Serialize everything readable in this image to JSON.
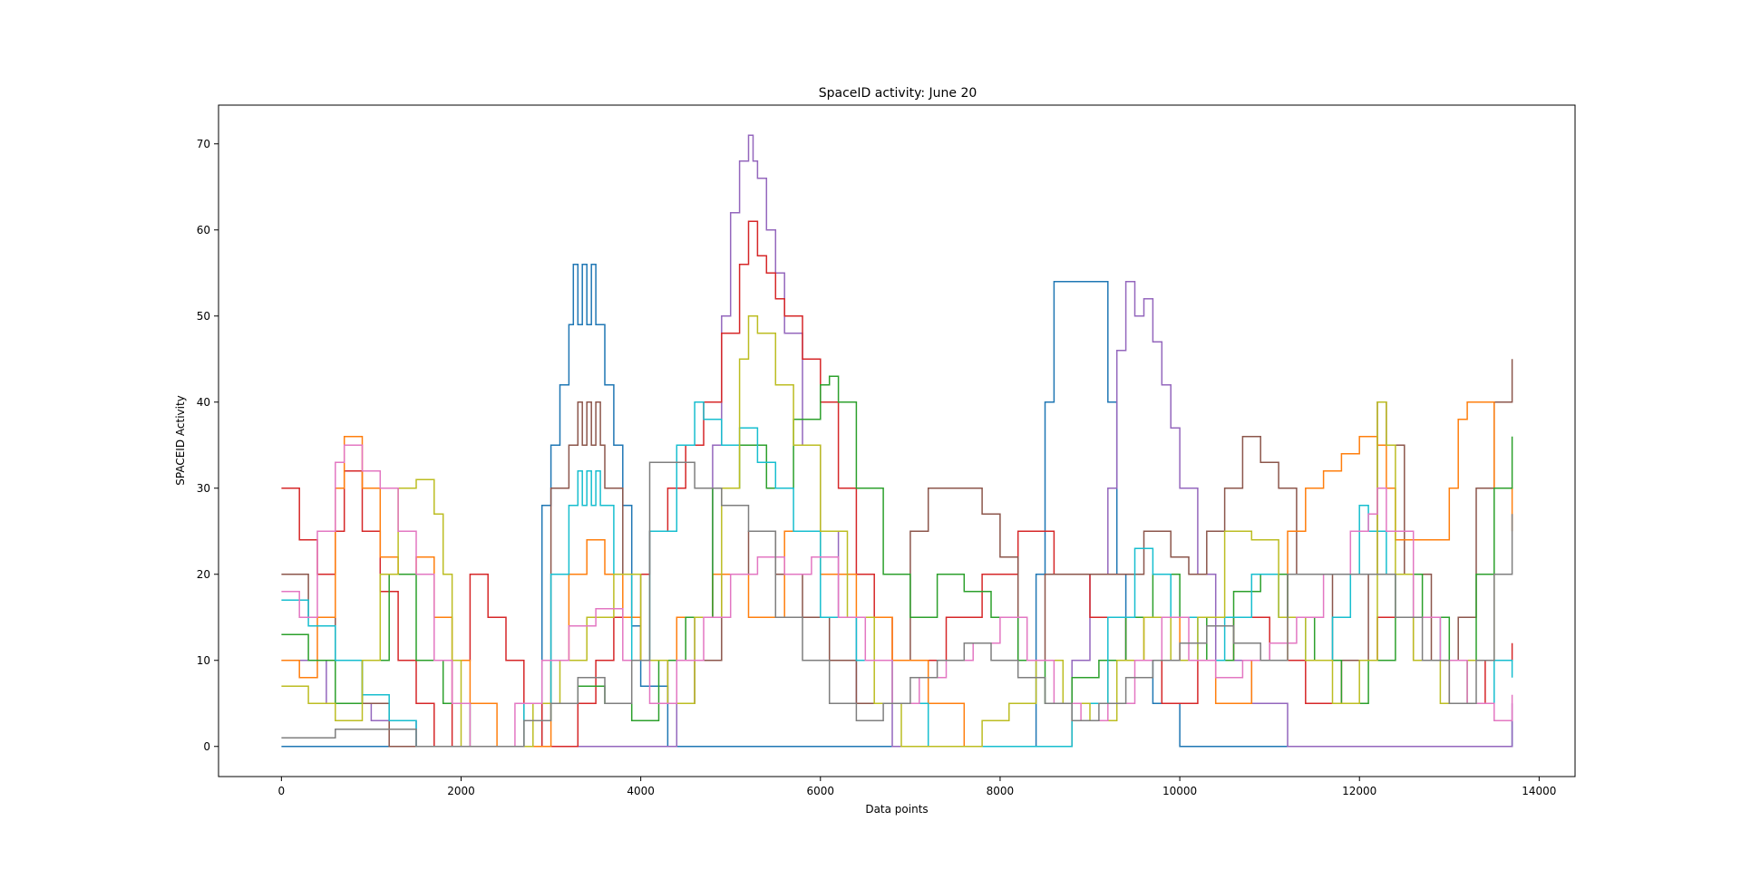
{
  "chart_data": {
    "type": "line",
    "title": "SpaceID activity: June 20",
    "xlabel": "Data points",
    "ylabel": "SPACEID Activity",
    "xlim": [
      -700,
      14400
    ],
    "ylim": [
      -3.5,
      74.5
    ],
    "xticks": [
      0,
      2000,
      4000,
      6000,
      8000,
      10000,
      12000,
      14000
    ],
    "yticks": [
      0,
      10,
      20,
      30,
      40,
      50,
      60,
      70
    ],
    "xtick_labels": [
      "0",
      "2000",
      "4000",
      "6000",
      "8000",
      "10000",
      "12000",
      "14000"
    ],
    "ytick_labels": [
      "0",
      "10",
      "20",
      "30",
      "40",
      "50",
      "60",
      "70"
    ],
    "grid": false,
    "legend": "none",
    "series": [
      {
        "color": "#1f77b4",
        "x": [
          0,
          300,
          600,
          900,
          1200,
          1500,
          1800,
          2100,
          2400,
          2700,
          2900,
          3000,
          3100,
          3200,
          3250,
          3300,
          3350,
          3400,
          3450,
          3500,
          3550,
          3600,
          3700,
          3800,
          3900,
          4000,
          4300,
          4600,
          5000,
          5400,
          5800,
          6200,
          6600,
          7000,
          7400,
          7800,
          8200,
          8400,
          8500,
          8600,
          8800,
          9000,
          9100,
          9200,
          9300,
          9400,
          9700,
          10000,
          10400,
          10800,
          11200,
          11600,
          12000,
          12400,
          12800,
          13200,
          13700
        ],
        "y": [
          0,
          0,
          0,
          0,
          0,
          0,
          0,
          0,
          0,
          0,
          28,
          35,
          42,
          49,
          56,
          49,
          56,
          49,
          56,
          49,
          49,
          42,
          35,
          28,
          14,
          7,
          0,
          0,
          0,
          0,
          0,
          0,
          0,
          0,
          0,
          0,
          0,
          20,
          40,
          54,
          54,
          54,
          54,
          40,
          20,
          10,
          5,
          0,
          0,
          0,
          0,
          0,
          0,
          0,
          0,
          0,
          3
        ]
      },
      {
        "color": "#9467bd",
        "x": [
          0,
          500,
          1000,
          1500,
          2000,
          2500,
          3000,
          3500,
          4000,
          4400,
          4600,
          4800,
          4900,
          5000,
          5100,
          5200,
          5250,
          5300,
          5400,
          5500,
          5600,
          5800,
          6000,
          6200,
          6400,
          6800,
          7200,
          7600,
          8000,
          8400,
          8800,
          9000,
          9200,
          9300,
          9400,
          9500,
          9600,
          9700,
          9800,
          9900,
          10000,
          10200,
          10400,
          10800,
          11200,
          11600,
          12000,
          12400,
          12800,
          13200,
          13700
        ],
        "y": [
          10,
          5,
          3,
          0,
          0,
          0,
          0,
          0,
          0,
          5,
          15,
          35,
          50,
          62,
          68,
          71,
          68,
          66,
          60,
          55,
          48,
          35,
          25,
          15,
          5,
          0,
          0,
          0,
          0,
          0,
          10,
          20,
          30,
          46,
          54,
          50,
          52,
          47,
          42,
          37,
          30,
          20,
          10,
          5,
          0,
          0,
          0,
          0,
          0,
          0,
          5
        ]
      },
      {
        "color": "#d62728",
        "x": [
          0,
          200,
          400,
          600,
          700,
          900,
          1100,
          1300,
          1500,
          1700,
          1900,
          2100,
          2300,
          2500,
          2700,
          2900,
          3100,
          3300,
          3500,
          3700,
          3900,
          4100,
          4300,
          4500,
          4700,
          4900,
          5100,
          5200,
          5300,
          5400,
          5500,
          5600,
          5800,
          6000,
          6200,
          6400,
          6600,
          6800,
          7000,
          7400,
          7800,
          8200,
          8600,
          9000,
          9400,
          9800,
          10200,
          10600,
          11000,
          11400,
          11800,
          12200,
          12600,
          13000,
          13400,
          13700
        ],
        "y": [
          30,
          24,
          20,
          25,
          32,
          25,
          18,
          10,
          5,
          0,
          10,
          20,
          15,
          10,
          5,
          0,
          0,
          5,
          10,
          15,
          20,
          25,
          30,
          35,
          40,
          48,
          56,
          61,
          57,
          55,
          52,
          50,
          45,
          40,
          30,
          20,
          15,
          10,
          10,
          15,
          20,
          25,
          20,
          15,
          10,
          5,
          10,
          15,
          10,
          5,
          10,
          15,
          10,
          5,
          10,
          12
        ]
      },
      {
        "color": "#8c564b",
        "x": [
          0,
          300,
          600,
          900,
          1200,
          1500,
          1800,
          2100,
          2400,
          2700,
          3000,
          3200,
          3300,
          3350,
          3400,
          3450,
          3500,
          3550,
          3600,
          3800,
          4000,
          4300,
          4600,
          4900,
          5200,
          5500,
          5800,
          6100,
          6400,
          6800,
          7000,
          7200,
          7400,
          7600,
          7800,
          8000,
          8200,
          8500,
          8800,
          9200,
          9600,
          9900,
          10100,
          10300,
          10500,
          10700,
          10900,
          11100,
          11300,
          11700,
          12100,
          12200,
          12300,
          12500,
          12800,
          13100,
          13300,
          13500,
          13700
        ],
        "y": [
          20,
          15,
          10,
          5,
          0,
          0,
          0,
          0,
          0,
          5,
          30,
          35,
          40,
          35,
          40,
          35,
          40,
          35,
          30,
          20,
          10,
          5,
          10,
          20,
          25,
          20,
          15,
          10,
          5,
          10,
          25,
          30,
          30,
          30,
          27,
          22,
          10,
          20,
          20,
          20,
          25,
          22,
          20,
          25,
          30,
          36,
          33,
          30,
          20,
          10,
          20,
          40,
          35,
          20,
          10,
          15,
          30,
          40,
          45
        ]
      },
      {
        "color": "#ff7f0e",
        "x": [
          0,
          200,
          400,
          600,
          700,
          900,
          1100,
          1300,
          1500,
          1700,
          1900,
          2100,
          2400,
          2700,
          3000,
          3200,
          3400,
          3600,
          3800,
          4000,
          4400,
          4800,
          5200,
          5600,
          6000,
          6400,
          6800,
          7200,
          7600,
          8000,
          8400,
          8800,
          9200,
          9600,
          10000,
          10400,
          10800,
          11200,
          11400,
          11600,
          11800,
          12000,
          12200,
          12300,
          12400,
          12600,
          12800,
          13000,
          13100,
          13200,
          13300,
          13500,
          13700
        ],
        "y": [
          10,
          8,
          15,
          30,
          36,
          30,
          22,
          20,
          22,
          15,
          10,
          5,
          0,
          0,
          10,
          20,
          24,
          20,
          15,
          10,
          15,
          20,
          15,
          25,
          20,
          15,
          10,
          5,
          0,
          0,
          0,
          5,
          10,
          15,
          10,
          5,
          10,
          25,
          30,
          32,
          34,
          36,
          35,
          30,
          24,
          24,
          24,
          30,
          38,
          40,
          40,
          30,
          25
        ]
      },
      {
        "color": "#2ca02c",
        "x": [
          0,
          300,
          600,
          900,
          1200,
          1500,
          1800,
          2100,
          2400,
          2700,
          3000,
          3300,
          3600,
          3900,
          4200,
          4500,
          4800,
          5100,
          5400,
          5700,
          6000,
          6100,
          6200,
          6400,
          6700,
          7000,
          7300,
          7600,
          7900,
          8200,
          8500,
          8800,
          9100,
          9400,
          9700,
          10000,
          10300,
          10600,
          10900,
          11200,
          11500,
          11800,
          12100,
          12400,
          12700,
          13000,
          13300,
          13500,
          13700
        ],
        "y": [
          13,
          10,
          5,
          10,
          20,
          10,
          5,
          0,
          0,
          3,
          5,
          7,
          5,
          3,
          10,
          15,
          30,
          35,
          30,
          38,
          42,
          43,
          40,
          30,
          20,
          15,
          20,
          18,
          15,
          10,
          5,
          8,
          10,
          15,
          20,
          15,
          10,
          18,
          20,
          15,
          10,
          5,
          10,
          20,
          15,
          10,
          20,
          30,
          36
        ]
      },
      {
        "color": "#17becf",
        "x": [
          0,
          300,
          600,
          900,
          1200,
          1500,
          1800,
          2100,
          2400,
          2700,
          3000,
          3200,
          3300,
          3350,
          3400,
          3450,
          3500,
          3550,
          3700,
          3900,
          4100,
          4400,
          4600,
          4700,
          4900,
          5100,
          5300,
          5500,
          5700,
          6000,
          6400,
          6800,
          7200,
          7600,
          8000,
          8400,
          8800,
          9200,
          9500,
          9700,
          9900,
          10200,
          10500,
          10800,
          11100,
          11400,
          11700,
          11900,
          12000,
          12100,
          12300,
          12600,
          12900,
          13200,
          13500,
          13700
        ],
        "y": [
          17,
          14,
          10,
          6,
          3,
          0,
          0,
          0,
          0,
          5,
          20,
          28,
          32,
          28,
          32,
          28,
          32,
          28,
          20,
          10,
          25,
          35,
          40,
          38,
          35,
          37,
          33,
          30,
          25,
          15,
          10,
          5,
          0,
          0,
          0,
          0,
          5,
          15,
          23,
          20,
          15,
          10,
          15,
          20,
          15,
          10,
          15,
          20,
          28,
          25,
          20,
          15,
          10,
          5,
          10,
          8
        ]
      },
      {
        "color": "#bcbd22",
        "x": [
          0,
          300,
          600,
          900,
          1100,
          1300,
          1500,
          1600,
          1700,
          1800,
          1900,
          2000,
          2200,
          2500,
          2800,
          3100,
          3400,
          3700,
          4000,
          4300,
          4600,
          4900,
          5100,
          5200,
          5300,
          5500,
          5700,
          6000,
          6300,
          6600,
          6900,
          7200,
          7500,
          7800,
          8100,
          8400,
          8700,
          9000,
          9300,
          9600,
          9900,
          10200,
          10500,
          10800,
          11100,
          11400,
          11700,
          12000,
          12200,
          12300,
          12400,
          12600,
          12900,
          13200,
          13500,
          13700
        ],
        "y": [
          7,
          5,
          3,
          10,
          20,
          30,
          31,
          31,
          27,
          20,
          10,
          0,
          0,
          0,
          5,
          10,
          15,
          20,
          10,
          5,
          15,
          30,
          45,
          50,
          48,
          42,
          35,
          25,
          15,
          5,
          0,
          0,
          0,
          3,
          5,
          10,
          5,
          3,
          10,
          15,
          10,
          15,
          25,
          24,
          15,
          10,
          5,
          10,
          40,
          35,
          20,
          10,
          5,
          10,
          20,
          20
        ]
      },
      {
        "color": "#e377c2",
        "x": [
          0,
          200,
          400,
          600,
          700,
          900,
          1100,
          1300,
          1500,
          1700,
          1900,
          2100,
          2300,
          2600,
          2900,
          3200,
          3500,
          3800,
          4100,
          4400,
          4700,
          5000,
          5300,
          5600,
          5900,
          6200,
          6500,
          6800,
          7100,
          7400,
          7700,
          8000,
          8300,
          8600,
          8900,
          9200,
          9500,
          9800,
          10100,
          10400,
          10700,
          11000,
          11300,
          11600,
          11900,
          12100,
          12200,
          12300,
          12600,
          12900,
          13200,
          13500,
          13700
        ],
        "y": [
          18,
          15,
          25,
          33,
          35,
          32,
          30,
          25,
          20,
          10,
          5,
          0,
          0,
          5,
          10,
          14,
          16,
          10,
          5,
          10,
          15,
          20,
          22,
          20,
          22,
          15,
          10,
          5,
          8,
          10,
          12,
          15,
          10,
          5,
          3,
          5,
          10,
          15,
          10,
          8,
          10,
          12,
          15,
          20,
          25,
          27,
          30,
          25,
          15,
          10,
          5,
          3,
          6
        ]
      },
      {
        "color": "#7f7f7f",
        "x": [
          0,
          300,
          600,
          900,
          1200,
          1500,
          1800,
          2100,
          2400,
          2700,
          3000,
          3300,
          3600,
          3900,
          4100,
          4300,
          4600,
          4900,
          5200,
          5500,
          5800,
          6100,
          6400,
          6700,
          7000,
          7300,
          7600,
          7900,
          8200,
          8500,
          8800,
          9100,
          9400,
          9700,
          10000,
          10300,
          10600,
          10900,
          11200,
          11500,
          11800,
          12100,
          12400,
          12700,
          13000,
          13300,
          13500,
          13700
        ],
        "y": [
          1,
          1,
          2,
          2,
          2,
          0,
          0,
          0,
          0,
          3,
          5,
          8,
          5,
          10,
          33,
          33,
          30,
          28,
          25,
          15,
          10,
          5,
          3,
          5,
          8,
          10,
          12,
          10,
          8,
          5,
          3,
          5,
          8,
          10,
          12,
          14,
          12,
          10,
          20,
          20,
          20,
          20,
          15,
          10,
          5,
          10,
          20,
          27
        ]
      }
    ]
  }
}
